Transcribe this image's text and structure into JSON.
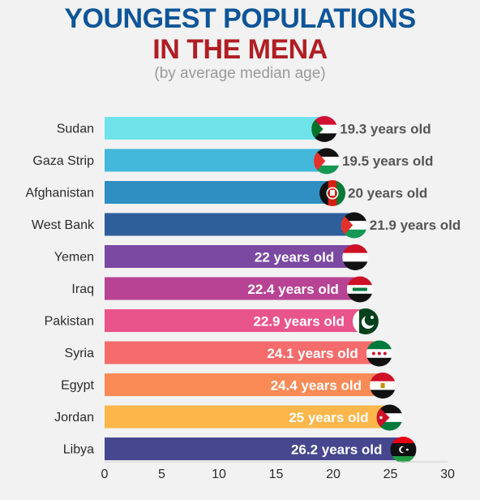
{
  "title_line1": "YOUNGEST POPULATIONS",
  "title_line2": "IN THE MENA",
  "subtitle": "(by average median age)",
  "colors": {
    "title1": "#0d5598",
    "title2": "#b01e23",
    "label_outside": "#555555",
    "label_inside": "#ffffff"
  },
  "chart_data": {
    "type": "bar",
    "orientation": "horizontal",
    "categories": [
      "Sudan",
      "Gaza Strip",
      "Afghanistan",
      "West Bank",
      "Yemen",
      "Iraq",
      "Pakistan",
      "Syria",
      "Egypt",
      "Jordan",
      "Libya"
    ],
    "values": [
      19.3,
      19.5,
      20,
      21.9,
      22,
      22.4,
      22.9,
      24.1,
      24.4,
      25,
      26.2
    ],
    "data_labels": [
      "19.3 years old",
      "19.5 years old",
      "20 years old",
      "21.9 years old",
      "22 years old",
      "22.4 years old",
      "22.9 years old",
      "24.1 years old",
      "24.4 years old",
      "25 years old",
      "26.2 years old"
    ],
    "bar_colors": [
      "#6fe3ea",
      "#44b8da",
      "#2f8ec2",
      "#2f5f9a",
      "#7b49a2",
      "#b84394",
      "#e9548a",
      "#f66b6b",
      "#fb8b56",
      "#fcb64a",
      "#46478f"
    ],
    "flag_icons": [
      "sudan-flag-icon",
      "palestine-flag-icon",
      "afghanistan-flag-icon",
      "palestine-flag-icon",
      "yemen-flag-icon",
      "iraq-flag-icon",
      "pakistan-flag-icon",
      "syria-flag-icon",
      "egypt-flag-icon",
      "jordan-flag-icon",
      "libya-flag-icon"
    ],
    "xlim": [
      0,
      30
    ],
    "xticks": [
      0,
      5,
      10,
      15,
      20,
      25,
      30
    ],
    "grid": false
  }
}
